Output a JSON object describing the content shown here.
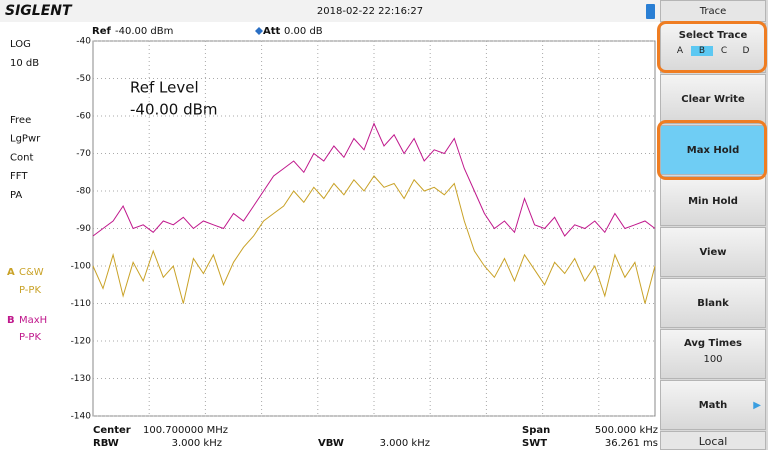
{
  "header": {
    "brand": "SIGLENT",
    "datetime": "2018-02-22  22:16:27"
  },
  "left_panel": {
    "scale": [
      "LOG",
      "10 dB"
    ],
    "modes": [
      "Free",
      "LgPwr",
      "Cont",
      "FFT",
      "PA"
    ]
  },
  "chart_data": {
    "type": "line",
    "ref_label": "Ref",
    "ref_value": "-40.00 dBm",
    "att_label": "Att",
    "att_value": "0.00 dB",
    "annotation": [
      "Ref Level",
      "-40.00 dBm"
    ],
    "ylim": [
      -140,
      -40
    ],
    "yticks": [
      -40,
      -50,
      -60,
      -70,
      -80,
      -90,
      -100,
      -110,
      -120,
      -130,
      -140
    ],
    "grid": true,
    "series": [
      {
        "letter": "A",
        "name": "C&W",
        "detector": "P-PK",
        "color": "#c9a227",
        "values": [
          -100,
          -106,
          -97,
          -108,
          -99,
          -104,
          -96,
          -103,
          -100,
          -110,
          -98,
          -102,
          -97,
          -105,
          -99,
          -95,
          -92,
          -88,
          -86,
          -84,
          -80,
          -83,
          -79,
          -82,
          -78,
          -81,
          -77,
          -80,
          -76,
          -79,
          -78,
          -82,
          -77,
          -80,
          -79,
          -81,
          -78,
          -88,
          -96,
          -100,
          -103,
          -98,
          -104,
          -97,
          -101,
          -105,
          -99,
          -102,
          -98,
          -104,
          -100,
          -108,
          -97,
          -103,
          -99,
          -110,
          -100
        ]
      },
      {
        "letter": "B",
        "name": "MaxH",
        "detector": "P-PK",
        "color": "#c0188c",
        "values": [
          -92,
          -90,
          -88,
          -84,
          -90,
          -89,
          -91,
          -88,
          -89,
          -87,
          -90,
          -88,
          -89,
          -90,
          -86,
          -88,
          -84,
          -80,
          -76,
          -74,
          -72,
          -75,
          -70,
          -72,
          -68,
          -71,
          -66,
          -69,
          -62,
          -68,
          -65,
          -70,
          -66,
          -72,
          -69,
          -70,
          -66,
          -74,
          -80,
          -86,
          -90,
          -88,
          -91,
          -82,
          -89,
          -90,
          -87,
          -92,
          -89,
          -90,
          -88,
          -91,
          -86,
          -90,
          -89,
          -88,
          -90
        ]
      }
    ]
  },
  "footer": {
    "center_label": "Center",
    "center_value": "100.700000 MHz",
    "rbw_label": "RBW",
    "rbw_value": "3.000 kHz",
    "vbw_label": "VBW",
    "vbw_value": "3.000 kHz",
    "span_label": "Span",
    "span_value": "500.000 kHz",
    "swt_label": "SWT",
    "swt_value": "36.261 ms"
  },
  "menu": {
    "title": "Trace",
    "select_trace": {
      "label": "Select Trace",
      "options": [
        "A",
        "B",
        "C",
        "D"
      ]
    },
    "buttons": [
      "Clear Write",
      "Max Hold",
      "Min Hold",
      "View",
      "Blank"
    ],
    "avg_times": {
      "label": "Avg Times",
      "value": "100"
    },
    "math": "Math",
    "status": "Local"
  }
}
